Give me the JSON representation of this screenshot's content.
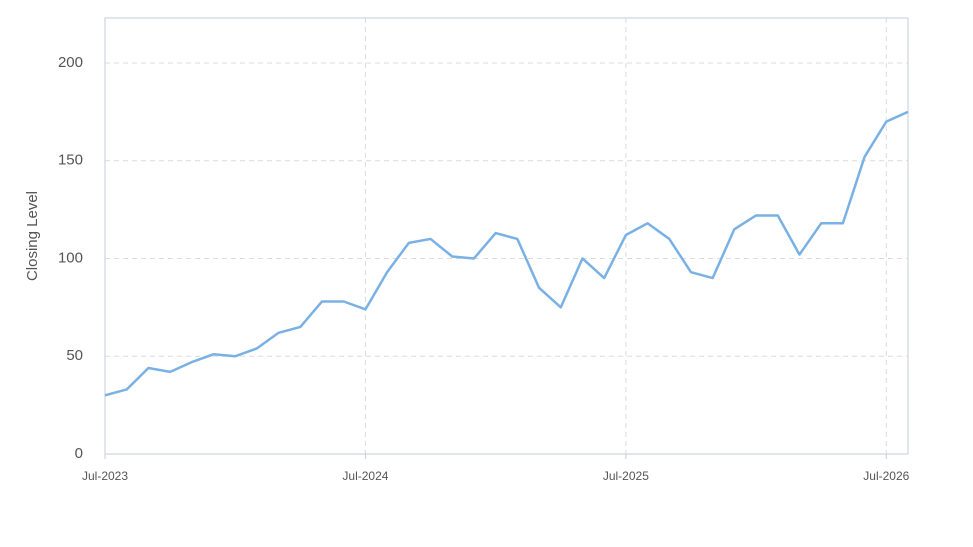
{
  "chart_data": {
    "type": "line",
    "y_label": "Closing Level",
    "x": [
      "2023-07",
      "2023-08",
      "2023-09",
      "2023-10",
      "2023-11",
      "2023-12",
      "2024-01",
      "2024-02",
      "2024-03",
      "2024-04",
      "2024-05",
      "2024-06",
      "2024-07",
      "2024-08",
      "2024-09",
      "2024-10",
      "2024-11",
      "2024-12",
      "2025-01",
      "2025-02",
      "2025-03",
      "2025-04",
      "2025-05",
      "2025-06",
      "2025-07",
      "2025-08",
      "2025-09",
      "2025-10",
      "2025-11",
      "2025-12",
      "2026-01",
      "2026-02",
      "2026-03",
      "2026-04",
      "2026-05",
      "2026-06",
      "2026-07",
      "2026-08"
    ],
    "series": [
      {
        "name": "Closing Level",
        "color": "#7ab1e4",
        "values": [
          30,
          33,
          44,
          42,
          47,
          51,
          50,
          54,
          62,
          65,
          78,
          78,
          74,
          93,
          108,
          110,
          101,
          100,
          113,
          110,
          85,
          75,
          100,
          90,
          112,
          118,
          110,
          93,
          90,
          115,
          122,
          122,
          102,
          118,
          118,
          152,
          170,
          175
        ]
      }
    ],
    "xlim": [
      "2023-07",
      "2026-08"
    ],
    "xticks": [
      {
        "value": "2023-07",
        "label": "Jul-2023"
      },
      {
        "value": "2024-07",
        "label": "Jul-2024"
      },
      {
        "value": "2025-07",
        "label": "Jul-2025"
      },
      {
        "value": "2026-07",
        "label": "Jul-2026"
      }
    ],
    "ylim": [
      0,
      223
    ],
    "yticks": [
      0,
      50,
      100,
      150,
      200
    ],
    "grid": true
  }
}
